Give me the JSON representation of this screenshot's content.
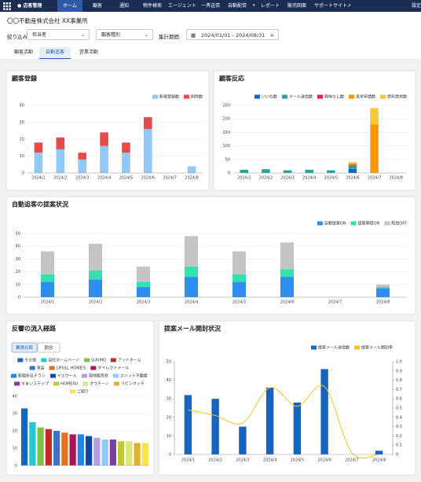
{
  "nav": {
    "logo": "店客管理",
    "items": [
      "ホーム",
      "顧客",
      "通知",
      "物件検索",
      "エージェント",
      "一斉送信",
      "自動配信",
      "レポート",
      "販売図面",
      "サポートサイト",
      "設定"
    ]
  },
  "company": "〇〇不動産株式会社 XX事業所",
  "filters": {
    "label": "絞り込み",
    "staff": "担当者",
    "customer_type": "顧客種別",
    "period_label": "集計期間",
    "period": "2024/01/01 - 2024/08/31"
  },
  "tabs": [
    "顧客活動",
    "自動追客",
    "営業活動"
  ],
  "buttons": [
    "累積比較",
    "割合"
  ],
  "chart_data": [
    {
      "type": "bar",
      "stacked": true,
      "title": "顧客登録",
      "categories": [
        "2024/1",
        "2024/2",
        "2024/3",
        "2024/4",
        "2024/5",
        "2024/6",
        "2024/7",
        "2024/8"
      ],
      "series": [
        {
          "name": "新規登録数",
          "color": "#90c8f8",
          "values": [
            12,
            14,
            8,
            16,
            12,
            26,
            0,
            4
          ]
        },
        {
          "name": "削除数",
          "color": "#e84a4a",
          "values": [
            6,
            7,
            4,
            8,
            6,
            7,
            0,
            0
          ]
        }
      ],
      "ylim": [
        0,
        40
      ],
      "yticks": [
        0,
        10,
        20,
        30,
        40
      ],
      "grid": true,
      "legend": "top-right"
    },
    {
      "type": "bar",
      "stacked": true,
      "title": "顧客反応",
      "categories": [
        "2024/1",
        "2024/2",
        "2024/3",
        "2024/4",
        "2024/5",
        "2024/6",
        "2024/7",
        "2024/8"
      ],
      "series": [
        {
          "name": "いいね数",
          "color": "#1565c0",
          "values": [
            0,
            0,
            0,
            0,
            0,
            15,
            0,
            0
          ]
        },
        {
          "name": "メール送信数",
          "color": "#26a69a",
          "values": [
            12,
            14,
            10,
            12,
            10,
            12,
            0,
            0
          ]
        },
        {
          "name": "興味なし数",
          "color": "#e91e63",
          "values": [
            0,
            0,
            0,
            0,
            0,
            3,
            0,
            0
          ]
        },
        {
          "name": "見学申請数",
          "color": "#ff9800",
          "values": [
            0,
            0,
            0,
            0,
            0,
            5,
            180,
            0
          ]
        },
        {
          "name": "資料請求数",
          "color": "#f9c837",
          "values": [
            0,
            0,
            0,
            0,
            0,
            5,
            60,
            0
          ]
        }
      ],
      "ylim": [
        0,
        250
      ],
      "yticks": [
        0,
        50,
        100,
        150,
        200,
        250
      ],
      "grid": true,
      "legend": "top-right"
    },
    {
      "type": "bar",
      "stacked": true,
      "title": "自動追客の提案状況",
      "categories": [
        "2024/1",
        "2024/2",
        "2024/3",
        "2024/4",
        "2024/5",
        "2024/6",
        "2024/7",
        "2024/8"
      ],
      "series": [
        {
          "name": "自動提案ON",
          "color": "#2e8ef0",
          "values": [
            12,
            14,
            8,
            16,
            12,
            16,
            0,
            7
          ]
        },
        {
          "name": "提案頻度ON",
          "color": "#33e0b0",
          "values": [
            6,
            7,
            4,
            8,
            6,
            6,
            0,
            1
          ]
        },
        {
          "name": "配信OFF",
          "color": "#c4c4c4",
          "values": [
            18,
            21,
            12,
            24,
            18,
            21,
            0,
            2
          ]
        }
      ],
      "ylim": [
        0,
        50
      ],
      "yticks": [
        0,
        10,
        20,
        30,
        40,
        50
      ],
      "grid": true,
      "legend": "top-right"
    },
    {
      "type": "bar",
      "stacked": false,
      "title": "反響の流入経路",
      "categories": [
        "その他",
        "自社ホームページ",
        "SUUMO",
        "アットホーム",
        "来店",
        "LIFULL HOME'S",
        "ダイレクトメール",
        "新聞折込チラシ",
        "イエウール",
        "現地販売会",
        "ズバット不動産",
        "すまいステップ",
        "HOME4U",
        "オウチーノ",
        "リビンマッチ",
        "ご紹介"
      ],
      "values": [
        33,
        25,
        22,
        21,
        20,
        19,
        18,
        18,
        17,
        16,
        15,
        15,
        14,
        14,
        13,
        13
      ],
      "colors": [
        "#1565c0",
        "#26c6da",
        "#7cc242",
        "#c62828",
        "#3f6fc4",
        "#e8701a",
        "#ad1457",
        "#1e88e5",
        "#0d47a1",
        "#b39ddb",
        "#90caf9",
        "#7b3fa2",
        "#c0ca33",
        "#dce775",
        "#e5b02a",
        "#fbe34b"
      ],
      "ylim": [
        0,
        40
      ],
      "yticks": [
        0,
        10,
        20,
        30,
        40
      ],
      "grid": true,
      "legend": "top-center"
    },
    {
      "type": "combo",
      "title": "提案メール開封状況",
      "categories": [
        "2024/1",
        "2024/2",
        "2024/3",
        "2024/4",
        "2024/5",
        "2024/6",
        "2024/7",
        "2024/8"
      ],
      "series": [
        {
          "name": "提案メール送信数",
          "color": "#1565c0",
          "values": [
            32,
            30,
            15,
            36,
            28,
            46,
            0,
            2
          ]
        },
        {
          "name": "提案メール開封率",
          "color": "#f5c518",
          "values": [
            0.48,
            0.42,
            0.34,
            0.72,
            0.52,
            0.73,
            0.02,
            0
          ],
          "axis": "y2"
        }
      ],
      "ylim": [
        0,
        50
      ],
      "yticks": [
        0,
        10,
        20,
        30,
        40,
        50
      ],
      "y2lim": [
        0,
        1
      ],
      "y2ticks": [
        0,
        0.1,
        0.2,
        0.3,
        0.4,
        0.5,
        0.6,
        0.7,
        0.8,
        0.9,
        {
          "value": 1,
          "label": "1.0"
        }
      ],
      "grid": false,
      "legend": "top-right"
    }
  ]
}
